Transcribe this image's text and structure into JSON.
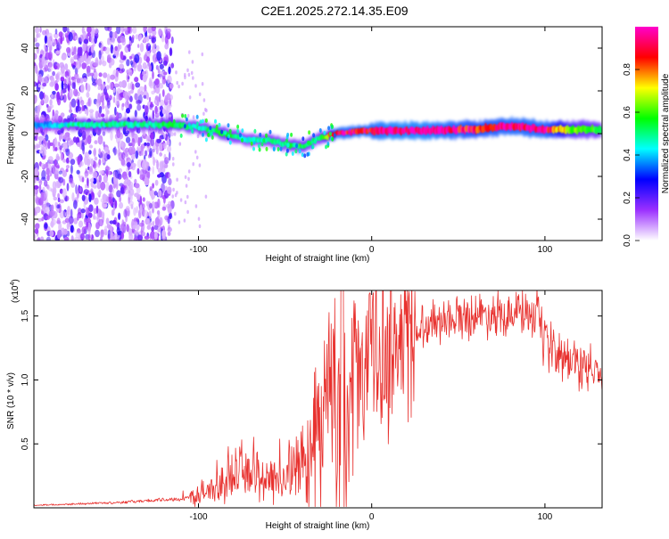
{
  "title": "C2E1.2025.272.14.35.E09",
  "chart_data": [
    {
      "type": "heatmap",
      "name": "spectrogram",
      "xlabel": "Height of straight line (km)",
      "ylabel": "Frequency (Hz)",
      "xlim": [
        -195,
        133
      ],
      "ylim": [
        -50,
        50
      ],
      "xticks": [
        -100,
        0,
        100
      ],
      "xtick_labels": [
        "-100",
        "0",
        "100"
      ],
      "yticks": [
        -40,
        -20,
        0,
        20,
        40
      ],
      "ytick_labels": [
        "-40",
        "-20",
        "0",
        "20",
        "40"
      ],
      "noise_region": {
        "x": [
          -195,
          -115
        ],
        "y": [
          -50,
          50
        ],
        "amplitude": [
          0.05,
          0.25
        ]
      },
      "ridge": {
        "x": [
          -195,
          -170,
          -140,
          -115,
          -100,
          -85,
          -70,
          -60,
          -50,
          -40,
          -30,
          -20,
          -10,
          0,
          10,
          30,
          60,
          80,
          100,
          120,
          133
        ],
        "y": [
          4,
          4,
          4.5,
          4,
          3,
          0,
          -3,
          -3,
          -5,
          -6,
          -2,
          0,
          1,
          1.5,
          1.5,
          1.5,
          2,
          3.5,
          2,
          2,
          2
        ],
        "amplitude": [
          0.35,
          0.5,
          0.5,
          0.55,
          0.5,
          0.55,
          0.45,
          0.5,
          0.5,
          0.55,
          0.5,
          0.95,
          0.95,
          0.95,
          1.0,
          1.0,
          0.9,
          0.95,
          0.95,
          0.6,
          0.55
        ]
      },
      "colorbar": {
        "label": "Normalized spectral amplitude",
        "range": [
          0,
          1
        ],
        "ticks": [
          0.0,
          0.2,
          0.4,
          0.6,
          0.8
        ],
        "tick_labels": [
          "0.0",
          "0.2",
          "0.4",
          "0.6",
          "0.8"
        ],
        "colors": [
          "#ffffff",
          "#9b30ff",
          "#0000ff",
          "#00ffff",
          "#00ff00",
          "#ffff00",
          "#ff0000",
          "#ff00cc"
        ]
      }
    },
    {
      "type": "line",
      "name": "snr",
      "xlabel": "Height of straight line (km)",
      "ylabel": "SNR (10 * v/v)",
      "scale_label": "(x10",
      "scale_exponent": "4",
      "xlim": [
        -195,
        133
      ],
      "ylim": [
        0,
        17000
      ],
      "xticks": [
        -100,
        0,
        100
      ],
      "xtick_labels": [
        "-100",
        "0",
        "100"
      ],
      "yticks": [
        5000,
        10000,
        15000
      ],
      "ytick_labels": [
        "0.5",
        "1.0",
        "1.5"
      ],
      "color": "#e8312e",
      "series": [
        {
          "name": "SNR",
          "x": [
            -195,
            -150,
            -110,
            -100,
            -90,
            -80,
            -70,
            -65,
            -60,
            -50,
            -45,
            -40,
            -35,
            -30,
            -25,
            -20,
            -17,
            -15,
            -10,
            0,
            10,
            20,
            30,
            40,
            60,
            80,
            90,
            95,
            100,
            110,
            120,
            125,
            133
          ],
          "y": [
            200,
            400,
            700,
            1000,
            1600,
            2400,
            3000,
            2400,
            2300,
            2600,
            3000,
            3300,
            4200,
            6500,
            9000,
            8500,
            12000,
            6000,
            10500,
            12000,
            12500,
            13500,
            14300,
            14800,
            15100,
            15300,
            15200,
            14500,
            12800,
            11700,
            11300,
            10700,
            10500
          ]
        }
      ]
    }
  ]
}
